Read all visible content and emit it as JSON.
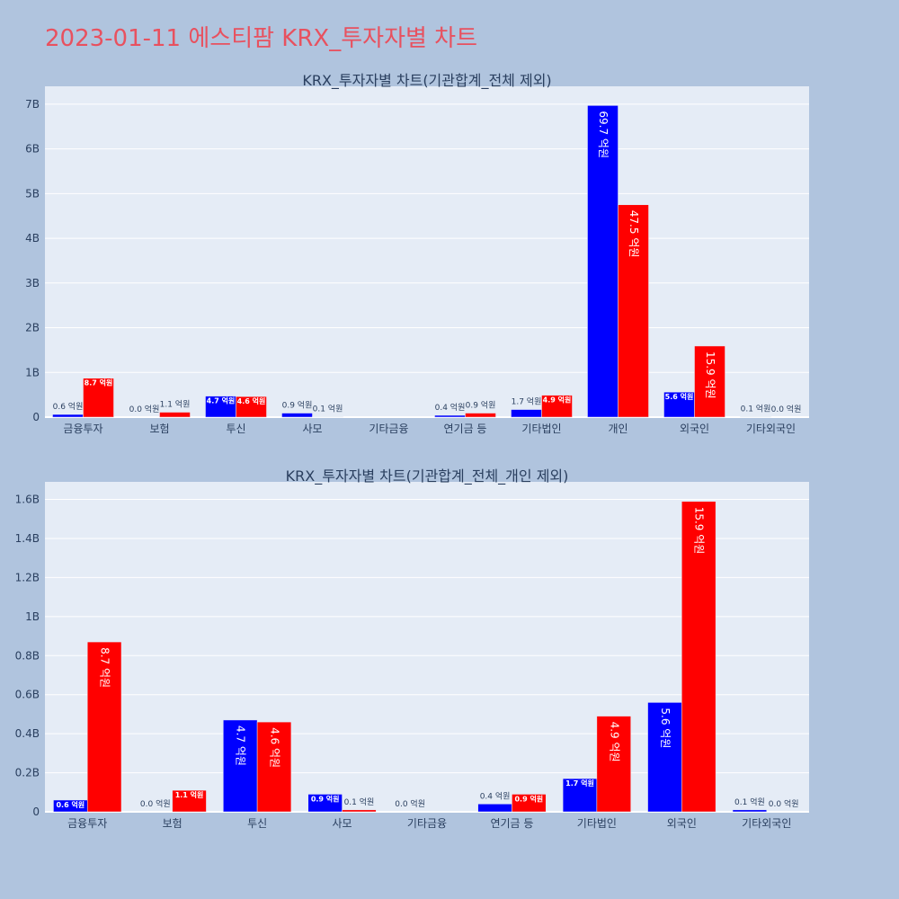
{
  "page": {
    "title": "2023-01-11 에스티팜 KRX_투자자별 차트"
  },
  "chart_data": [
    {
      "type": "bar",
      "title": "KRX_투자자별 차트(기관합계_전체 제외)",
      "categories": [
        "금융투자",
        "보험",
        "투신",
        "사모",
        "기타금융",
        "연기금 등",
        "기타법인",
        "개인",
        "외국인",
        "기타외국인"
      ],
      "ylim": [
        0,
        7.4
      ],
      "yticks": [
        0,
        1,
        2,
        3,
        4,
        5,
        6,
        7
      ],
      "ytick_labels": [
        "0",
        "1B",
        "2B",
        "3B",
        "4B",
        "5B",
        "6B",
        "7B"
      ],
      "grid": true,
      "series": [
        {
          "color": "#0000ff",
          "values": [
            0.06,
            0.0,
            0.47,
            0.09,
            null,
            0.04,
            0.17,
            6.97,
            0.56,
            0.01
          ],
          "labels": [
            "0.6 억원",
            "0.0 억원",
            "4.7 억원",
            "0.9 억원",
            "",
            "0.4 억원",
            "1.7 억원",
            "69.7 억원",
            "5.6 억원",
            "0.1 억원"
          ]
        },
        {
          "color": "#ff0000",
          "values": [
            0.87,
            0.11,
            0.46,
            0.01,
            null,
            0.09,
            0.49,
            4.75,
            1.59,
            0.0
          ],
          "labels": [
            "8.7 억원",
            "1.1 억원",
            "4.6 억원",
            "0.1 억원",
            "",
            "0.9 억원",
            "4.9 억원",
            "47.5 억원",
            "15.9 억원",
            "0.0 억원"
          ]
        }
      ]
    },
    {
      "type": "bar",
      "title": "KRX_투자자별 차트(기관합계_전체_개인 제외)",
      "categories": [
        "금융투자",
        "보험",
        "투신",
        "사모",
        "기타금융",
        "연기금 등",
        "기타법인",
        "외국인",
        "기타외국인"
      ],
      "ylim": [
        0,
        1.69
      ],
      "yticks": [
        0,
        0.2,
        0.4,
        0.6,
        0.8,
        1.0,
        1.2,
        1.4,
        1.6
      ],
      "ytick_labels": [
        "0",
        "0.2B",
        "0.4B",
        "0.6B",
        "0.8B",
        "1B",
        "1.2B",
        "1.4B",
        "1.6B"
      ],
      "grid": true,
      "series": [
        {
          "color": "#0000ff",
          "values": [
            0.06,
            0.0,
            0.47,
            0.09,
            0.0,
            0.04,
            0.17,
            0.56,
            0.01
          ],
          "labels": [
            "0.6 억원",
            "0.0 억원",
            "4.7 억원",
            "0.9 억원",
            "0.0 억원",
            "0.4 억원",
            "1.7 억원",
            "5.6 억원",
            "0.1 억원"
          ]
        },
        {
          "color": "#ff0000",
          "values": [
            0.87,
            0.11,
            0.46,
            0.01,
            null,
            0.09,
            0.49,
            1.59,
            0.0
          ],
          "labels": [
            "8.7 억원",
            "1.1 억원",
            "4.6 억원",
            "0.1 억원",
            "",
            "0.9 억원",
            "4.9 억원",
            "15.9 억원",
            "0.0 억원"
          ]
        }
      ]
    }
  ]
}
